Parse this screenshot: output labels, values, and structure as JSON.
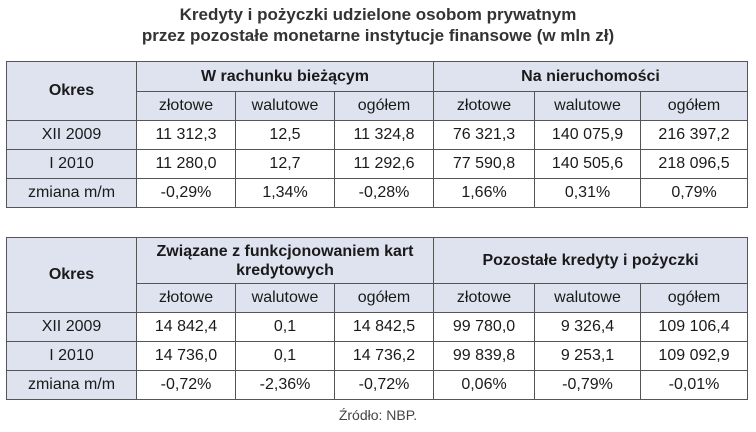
{
  "title": {
    "line1": "Kredyty i pożyczki udzielone osobom prywatnym",
    "line2": "przez pozostałe monetarne instytucje finansowe (w mln zł)"
  },
  "table1": {
    "okres_header": "Okres",
    "group1": "W rachunku bieżącym",
    "group2": "Na nieruchomości",
    "subheaders": [
      "złotowe",
      "walutowe",
      "ogółem",
      "złotowe",
      "walutowe",
      "ogółem"
    ],
    "rows": [
      {
        "label": "XII 2009",
        "values": [
          "11 312,3",
          "12,5",
          "11 324,8",
          "76 321,3",
          "140 075,9",
          "216 397,2"
        ]
      },
      {
        "label": "I 2010",
        "values": [
          "11 280,0",
          "12,7",
          "11 292,6",
          "77 590,8",
          "140 505,6",
          "218 096,5"
        ]
      },
      {
        "label": "zmiana m/m",
        "values": [
          "-0,29%",
          "1,34%",
          "-0,28%",
          "1,66%",
          "0,31%",
          "0,79%"
        ]
      }
    ]
  },
  "table2": {
    "okres_header": "Okres",
    "group1": "Związane z funkcjonowaniem kart kredytowych",
    "group2": "Pozostałe kredyty i pożyczki",
    "subheaders": [
      "złotowe",
      "walutowe",
      "ogółem",
      "złotowe",
      "walutowe",
      "ogółem"
    ],
    "rows": [
      {
        "label": "XII 2009",
        "values": [
          "14 842,4",
          "0,1",
          "14 842,5",
          "99 780,0",
          "9 326,4",
          "109 106,4"
        ]
      },
      {
        "label": "I 2010",
        "values": [
          "14 736,0",
          "0,1",
          "14 736,2",
          "99 839,8",
          "9 253,1",
          "109 092,9"
        ]
      },
      {
        "label": "zmiana m/m",
        "values": [
          "-0,72%",
          "-2,36%",
          "-0,72%",
          "0,06%",
          "-0,79%",
          "-0,01%"
        ]
      }
    ]
  },
  "source": "Źródło: NBP."
}
